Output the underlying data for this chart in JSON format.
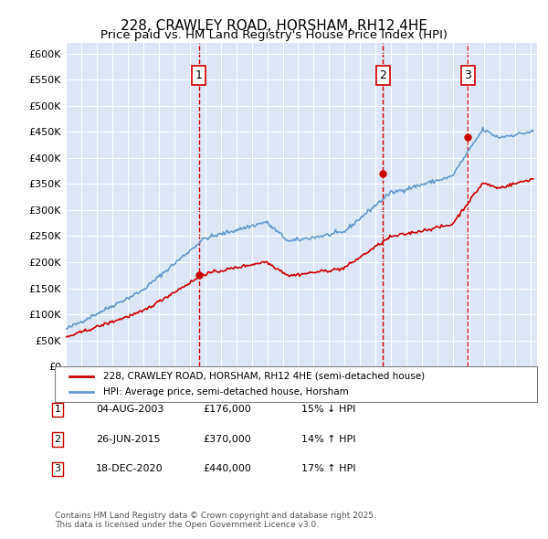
{
  "title_line1": "228, CRAWLEY ROAD, HORSHAM, RH12 4HE",
  "title_line2": "Price paid vs. HM Land Registry's House Price Index (HPI)",
  "ylabel": "",
  "background_color": "#dce6f5",
  "plot_bg_color": "#dce6f5",
  "ylim": [
    0,
    620000
  ],
  "yticks": [
    0,
    50000,
    100000,
    150000,
    200000,
    250000,
    300000,
    350000,
    400000,
    450000,
    500000,
    550000,
    600000
  ],
  "sale_dates": [
    "2003-08-04",
    "2015-06-26",
    "2020-12-18"
  ],
  "sale_prices": [
    176000,
    370000,
    440000
  ],
  "sale_labels": [
    "1",
    "2",
    "3"
  ],
  "vline_color": "#cc0000",
  "sale_marker_color": "#cc0000",
  "hpi_line_color": "#6699cc",
  "price_line_color": "#cc0000",
  "legend_label_price": "228, CRAWLEY ROAD, HORSHAM, RH12 4HE (semi-detached house)",
  "legend_label_hpi": "HPI: Average price, semi-detached house, Horsham",
  "table_data": [
    [
      "1",
      "04-AUG-2003",
      "£176,000",
      "15% ↓ HPI"
    ],
    [
      "2",
      "26-JUN-2015",
      "£370,000",
      "14% ↑ HPI"
    ],
    [
      "3",
      "18-DEC-2020",
      "£440,000",
      "17% ↑ HPI"
    ]
  ],
  "footnote": "Contains HM Land Registry data © Crown copyright and database right 2025.\nThis data is licensed under the Open Government Licence v3.0.",
  "title_fontsize": 11,
  "label_fontsize": 9
}
